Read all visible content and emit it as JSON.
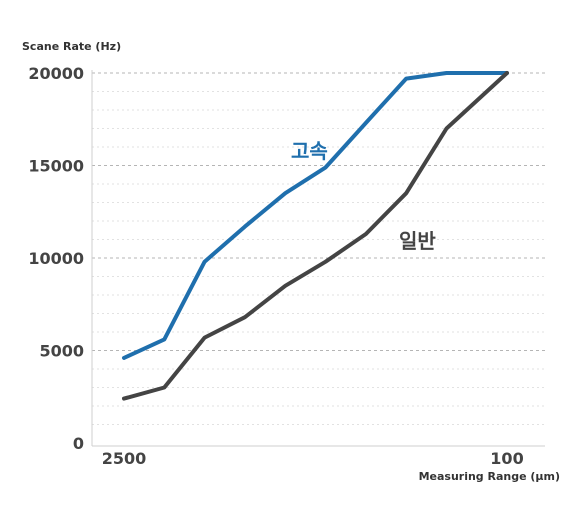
{
  "chart_data": {
    "type": "line",
    "ylabel": "Scane Rate (Hz)",
    "xlabel": "Measuring Range (µm)",
    "ylim": [
      0,
      20000
    ],
    "yticks": [
      {
        "value": 0,
        "label": "0"
      },
      {
        "value": 5000,
        "label": "5000"
      },
      {
        "value": 10000,
        "label": "10000"
      },
      {
        "value": 15000,
        "label": "15000"
      },
      {
        "value": 20000,
        "label": "20000"
      }
    ],
    "x_index_range": [
      0,
      9.5
    ],
    "xticks": [
      {
        "index": 0,
        "label": "2500"
      },
      {
        "index": 9.5,
        "label": "100"
      }
    ],
    "grid": true,
    "series": [
      {
        "name": "고속",
        "color": "#1f6fad",
        "x_index": [
          0,
          1,
          2,
          3,
          4,
          5,
          6,
          7,
          8,
          9.5
        ],
        "values": [
          4600,
          5600,
          9800,
          11700,
          13500,
          14900,
          17300,
          19700,
          20000,
          20000
        ]
      },
      {
        "name": "일반",
        "color": "#444444",
        "x_index": [
          0,
          1,
          2,
          3,
          4,
          5,
          6,
          7,
          8,
          9.5
        ],
        "values": [
          2400,
          3000,
          5700,
          6800,
          8500,
          9800,
          11300,
          13500,
          17000,
          20000
        ]
      }
    ]
  }
}
